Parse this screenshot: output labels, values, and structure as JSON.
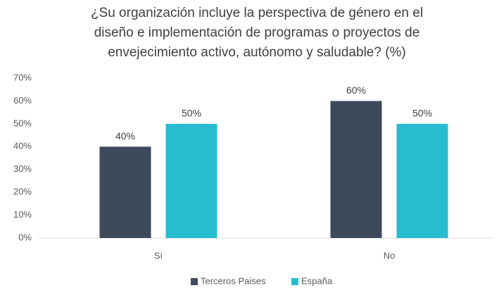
{
  "chart_data": {
    "type": "bar",
    "title": [
      "¿Su organización incluye la perspectiva de género en el",
      "diseño e implementación de programas o proyectos de",
      "envejecimiento activo, autónomo y saludable? (%)"
    ],
    "categories": [
      "Sí",
      "No"
    ],
    "series": [
      {
        "name": "Terceros Paises",
        "color": "#3d4a5c",
        "values": [
          40,
          60
        ],
        "value_labels": [
          "40%",
          "60%"
        ]
      },
      {
        "name": "España",
        "color": "#27bccf",
        "values": [
          50,
          50
        ],
        "value_labels": [
          "50%",
          "50%"
        ]
      }
    ],
    "ylim": [
      0,
      70
    ],
    "yticks": [
      {
        "value": 0,
        "label": "0%"
      },
      {
        "value": 10,
        "label": "10%"
      },
      {
        "value": 20,
        "label": "20%"
      },
      {
        "value": 30,
        "label": "30%"
      },
      {
        "value": 40,
        "label": "40%"
      },
      {
        "value": 50,
        "label": "50%"
      },
      {
        "value": 60,
        "label": "60%"
      },
      {
        "value": 70,
        "label": "70%"
      }
    ],
    "grid": false,
    "legend": "bottom"
  }
}
